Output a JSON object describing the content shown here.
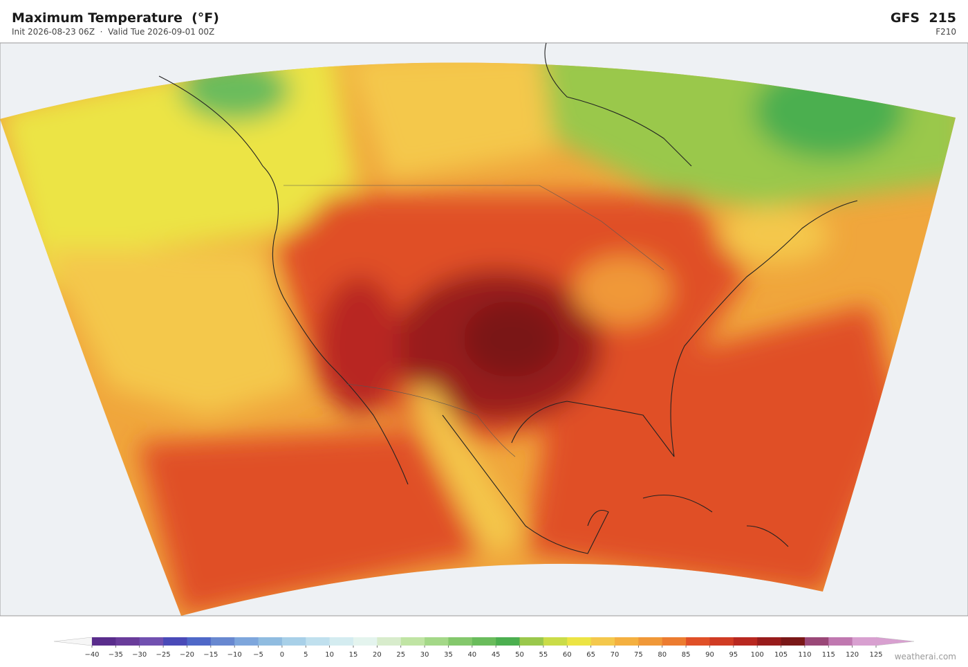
{
  "header": {
    "title": "Maximum Temperature  (°F)",
    "subtitle": "Init 2026-08-23 06Z  ·  Valid Tue 2026-09-01 00Z",
    "model": "GFS  215",
    "forecast_hour": "F210"
  },
  "colorbar": {
    "ticks": [
      {
        "value": -40,
        "label": "−40"
      },
      {
        "value": -35,
        "label": "−35"
      },
      {
        "value": -30,
        "label": "−30"
      },
      {
        "value": -25,
        "label": "−25"
      },
      {
        "value": -20,
        "label": "−20"
      },
      {
        "value": -15,
        "label": "−15"
      },
      {
        "value": -10,
        "label": "−10"
      },
      {
        "value": -5,
        "label": "−5"
      },
      0,
      5,
      10,
      15,
      20,
      25,
      30,
      35,
      40,
      45,
      50,
      55,
      60,
      65,
      70,
      75,
      80,
      85,
      90,
      95,
      100,
      105,
      110,
      115,
      120,
      125
    ],
    "colors": [
      "#5a2d8c",
      "#693c9a",
      "#7150b0",
      "#4a4ab8",
      "#4f68c8",
      "#6888d0",
      "#7ea6dc",
      "#90bce0",
      "#a8d0e8",
      "#c0e0ee",
      "#d4ecf0",
      "#e4f4ee",
      "#d8eccc",
      "#c0e4a4",
      "#a4d888",
      "#84c86c",
      "#6abc5c",
      "#4caf50",
      "#9ac84c",
      "#cadc48",
      "#ece444",
      "#f4c84c",
      "#f4b040",
      "#f09838",
      "#ec7c30",
      "#e05028",
      "#d03c24",
      "#b82820",
      "#981c1c",
      "#7a1818",
      "#9a4878",
      "#c078b0",
      "#d8a0d0"
    ],
    "under_color": "#f6f6f6",
    "over_color": "#d8a0d0"
  },
  "watermark": "weatherai.com"
}
